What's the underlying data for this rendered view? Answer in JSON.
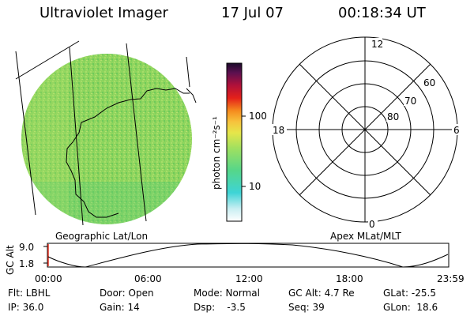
{
  "header": {
    "title": "Ultraviolet Imager",
    "date": "17 Jul 07",
    "time": "00:18:34 UT"
  },
  "colorbar": {
    "label": "photon cm⁻²s⁻¹",
    "tick_high": "100",
    "tick_low": "10"
  },
  "polar_plot": {
    "mlt_labels": [
      "12",
      "18",
      "6",
      "0"
    ],
    "lat_labels": [
      "60",
      "70",
      "80"
    ]
  },
  "projection_labels": {
    "left": "Geographic Lat/Lon",
    "right": "Apex MLat/MLT"
  },
  "altitude_plot": {
    "axis_label": "GC Alt",
    "y_ticks": [
      "9.0",
      "1.8"
    ],
    "x_ticks": [
      "00:00",
      "06:00",
      "12:00",
      "18:00",
      "23:59"
    ]
  },
  "status": {
    "flt": "Flt: LBHL",
    "door": "Door: Open",
    "mode": "Mode: Normal",
    "gc_alt": "GC Alt: 4.7 Re",
    "glat": "GLat: -25.5",
    "ip": "IP: 36.0",
    "gain": "Gain: 14",
    "dsp": "Dsp:    -3.5",
    "seq": "Seq: 39",
    "glon": "GLon:  18.6"
  },
  "colors": {
    "image_base": "#8bd45a",
    "background": "#ffffff",
    "line": "#000000"
  }
}
